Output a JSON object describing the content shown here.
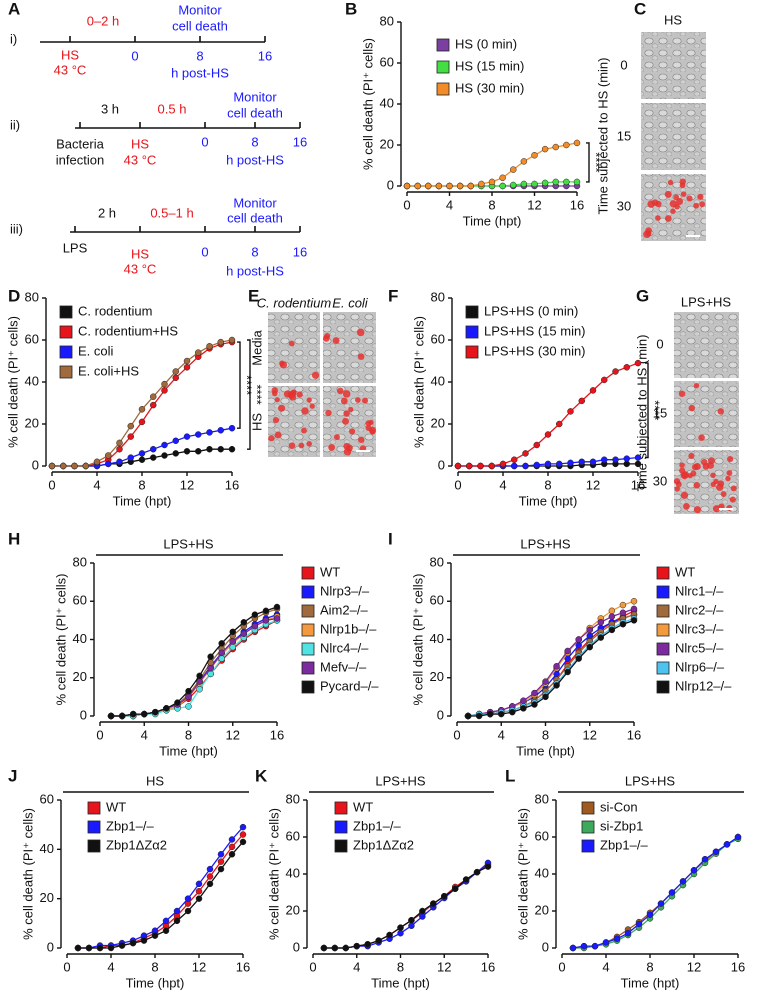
{
  "diagram_a": {
    "label": "A",
    "rows": [
      {
        "label": "i)",
        "interval": "0–2 h",
        "monitor": [
          "Monitor",
          "cell death"
        ],
        "hs": [
          "HS",
          "43 °C"
        ],
        "ticks": [
          0,
          8,
          16
        ],
        "unit": "h post-HS"
      },
      {
        "label": "ii)",
        "pre_interval": "3 h",
        "interval": "0.5 h",
        "monitor": [
          "Monitor",
          "cell death"
        ],
        "start": [
          "Bacteria",
          "infection"
        ],
        "hs": [
          "HS",
          "43 °C"
        ],
        "ticks": [
          0,
          8,
          16
        ],
        "unit": "h post-HS"
      },
      {
        "label": "iii)",
        "pre_interval": "2 h",
        "interval": "0.5–1 h",
        "monitor": [
          "Monitor",
          "cell death"
        ],
        "start": [
          "LPS"
        ],
        "hs": [
          "HS",
          "43 °C"
        ],
        "ticks": [
          0,
          8,
          16
        ],
        "unit": "h post-HS"
      }
    ]
  },
  "panel_c": {
    "label": "C",
    "title": "HS",
    "ylabel": "Time subjected to HS (min)",
    "rows": [
      0,
      15,
      30
    ]
  },
  "panel_e": {
    "label": "E",
    "columns": [
      "C. rodentium",
      "E. coli"
    ],
    "rows": [
      "Media",
      "HS"
    ]
  },
  "panel_g": {
    "label": "G",
    "title": "LPS+HS",
    "ylabel": "Time subjected to HS (min)",
    "rows": [
      0,
      15,
      30
    ]
  },
  "chart_data": [
    {
      "type": "line",
      "label": "B",
      "ylabel": "% cell death (PI⁺ cells)",
      "xlabel": "Time (hpt)",
      "x": [
        0,
        1,
        2,
        3,
        4,
        5,
        6,
        7,
        8,
        9,
        10,
        11,
        12,
        13,
        14,
        15,
        16
      ],
      "xlim": [
        0,
        16
      ],
      "xticks": [
        0,
        4,
        8,
        12,
        16
      ],
      "ylim": [
        0,
        80
      ],
      "yticks": [
        0,
        20,
        40,
        60,
        80
      ],
      "series": [
        {
          "name": "HS (0 min)",
          "color": "#7b3fa0",
          "values": [
            0,
            0,
            0,
            0,
            0,
            0,
            0,
            0,
            0,
            0,
            0,
            0,
            0,
            0,
            0,
            0,
            0
          ]
        },
        {
          "name": "HS (15 min)",
          "color": "#44dd44",
          "values": [
            0,
            0,
            0,
            0,
            0,
            0,
            0,
            0,
            0,
            0,
            0.5,
            1,
            1,
            1.5,
            2,
            2,
            2
          ]
        },
        {
          "name": "HS (30 min)",
          "color": "#f28c28",
          "values": [
            0,
            0,
            0,
            0,
            0,
            0,
            0,
            1,
            2,
            4,
            8,
            12,
            15,
            18,
            19,
            20,
            21
          ]
        }
      ],
      "annotations": [
        "****"
      ]
    },
    {
      "type": "line",
      "label": "D",
      "ylabel": "% cell death (PI⁺ cells)",
      "xlabel": "Time (hpt)",
      "x": [
        0,
        1,
        2,
        3,
        4,
        5,
        6,
        7,
        8,
        9,
        10,
        11,
        12,
        13,
        14,
        15,
        16
      ],
      "xlim": [
        0,
        16
      ],
      "xticks": [
        0,
        4,
        8,
        12,
        16
      ],
      "ylim": [
        0,
        80
      ],
      "yticks": [
        0,
        20,
        40,
        60,
        80
      ],
      "series": [
        {
          "name": "C. rodentium",
          "color": "#111111",
          "values": [
            0,
            0,
            0,
            0,
            0,
            1,
            1,
            2,
            3,
            4,
            5,
            6,
            7,
            7,
            8,
            8,
            8
          ]
        },
        {
          "name": "C. rodentium+HS",
          "color": "#e8141b",
          "values": [
            0,
            0,
            0,
            0,
            1,
            3,
            8,
            14,
            21,
            29,
            36,
            42,
            47,
            52,
            56,
            58,
            59
          ]
        },
        {
          "name": "E. coli",
          "color": "#1a1aff",
          "values": [
            0,
            0,
            0,
            0,
            0,
            1,
            2,
            4,
            6,
            8,
            10,
            12,
            14,
            15,
            16,
            17,
            18
          ]
        },
        {
          "name": "E. coli+HS",
          "color": "#a06a3c",
          "values": [
            0,
            0,
            0,
            0,
            2,
            5,
            11,
            19,
            27,
            33,
            39,
            45,
            50,
            54,
            57,
            59,
            60
          ]
        }
      ],
      "annotations": [
        "****",
        "****"
      ]
    },
    {
      "type": "line",
      "label": "F",
      "ylabel": "% cell death (PI⁺ cells)",
      "xlabel": "Time (hpt)",
      "x": [
        0,
        1,
        2,
        3,
        4,
        5,
        6,
        7,
        8,
        9,
        10,
        11,
        12,
        13,
        14,
        15,
        16
      ],
      "xlim": [
        0,
        16
      ],
      "xticks": [
        0,
        4,
        8,
        12,
        16
      ],
      "ylim": [
        0,
        80
      ],
      "yticks": [
        0,
        20,
        40,
        60,
        80
      ],
      "series": [
        {
          "name": "LPS+HS (0 min)",
          "color": "#111111",
          "values": [
            0,
            0,
            0,
            0,
            0,
            0,
            0,
            0,
            0,
            0,
            0,
            0.5,
            0.5,
            1,
            1,
            1,
            1
          ]
        },
        {
          "name": "LPS+HS (15 min)",
          "color": "#1a1aff",
          "values": [
            0,
            0,
            0,
            0,
            0,
            0,
            0,
            0.5,
            1,
            1,
            1.5,
            2,
            2,
            3,
            3,
            3.5,
            4
          ]
        },
        {
          "name": "LPS+HS (30 min)",
          "color": "#e8141b",
          "values": [
            0,
            0,
            0,
            0,
            1,
            3,
            6,
            10,
            15,
            20,
            26,
            31,
            36,
            41,
            45,
            47,
            49
          ]
        }
      ],
      "annotations": [
        "****"
      ]
    },
    {
      "type": "line",
      "label": "H",
      "title": "LPS+HS",
      "ylabel": "% cell death (PI⁺ cells)",
      "xlabel": "Time (hpt)",
      "x": [
        1,
        2,
        3,
        4,
        5,
        6,
        7,
        8,
        9,
        10,
        11,
        12,
        13,
        14,
        15,
        16
      ],
      "xlim": [
        0,
        16
      ],
      "xticks": [
        0,
        4,
        8,
        12,
        16
      ],
      "ylim": [
        0,
        80
      ],
      "yticks": [
        0,
        20,
        40,
        60,
        80
      ],
      "series": [
        {
          "name": "WT",
          "color": "#e8141b",
          "values": [
            0,
            0,
            0,
            1,
            2,
            3,
            5,
            9,
            15,
            22,
            29,
            35,
            40,
            44,
            47,
            50
          ]
        },
        {
          "name": "Nlrp3–/–",
          "color": "#1a1aff",
          "values": [
            0,
            0,
            1,
            1,
            2,
            4,
            6,
            11,
            18,
            26,
            33,
            39,
            44,
            48,
            51,
            53
          ]
        },
        {
          "name": "Aim2–/–",
          "color": "#a06a3c",
          "values": [
            0,
            0,
            0,
            1,
            2,
            4,
            6,
            11,
            19,
            28,
            35,
            42,
            47,
            51,
            54,
            56
          ]
        },
        {
          "name": "Nlrp1b–/–",
          "color": "#f39a3e",
          "values": [
            0,
            0,
            0,
            1,
            2,
            3,
            5,
            10,
            17,
            25,
            32,
            38,
            43,
            47,
            50,
            52
          ]
        },
        {
          "name": "Nlrc4–/–",
          "color": "#4fe3e3",
          "values": [
            0,
            0,
            0,
            1,
            1,
            3,
            4,
            5,
            14,
            22,
            30,
            36,
            41,
            45,
            48,
            50
          ]
        },
        {
          "name": "Mefv–/–",
          "color": "#7d2a9e",
          "values": [
            0,
            0,
            1,
            1,
            2,
            4,
            6,
            10,
            18,
            25,
            33,
            39,
            43,
            47,
            50,
            51
          ]
        },
        {
          "name": "Pycard–/–",
          "color": "#111111",
          "values": [
            0,
            0,
            1,
            1,
            2,
            4,
            7,
            13,
            21,
            31,
            38,
            44,
            49,
            53,
            55,
            57
          ]
        }
      ]
    },
    {
      "type": "line",
      "label": "I",
      "title": "LPS+HS",
      "ylabel": "% cell death (PI⁺ cells)",
      "xlabel": "Time (hpt)",
      "x": [
        1,
        2,
        3,
        4,
        5,
        6,
        7,
        8,
        9,
        10,
        11,
        12,
        13,
        14,
        15,
        16
      ],
      "xlim": [
        0,
        16
      ],
      "xticks": [
        0,
        4,
        8,
        12,
        16
      ],
      "ylim": [
        0,
        80
      ],
      "yticks": [
        0,
        20,
        40,
        60,
        80
      ],
      "series": [
        {
          "name": "WT",
          "color": "#e8141b",
          "values": [
            0,
            1,
            1,
            2,
            3,
            5,
            8,
            13,
            19,
            27,
            34,
            40,
            45,
            49,
            52,
            55
          ]
        },
        {
          "name": "Nlrc1–/–",
          "color": "#1a1aff",
          "values": [
            0,
            1,
            2,
            3,
            5,
            7,
            10,
            15,
            22,
            30,
            37,
            42,
            46,
            49,
            51,
            53
          ]
        },
        {
          "name": "Nlrc2–/–",
          "color": "#a06a3c",
          "values": [
            0,
            1,
            1,
            2,
            3,
            5,
            8,
            13,
            19,
            26,
            33,
            39,
            44,
            48,
            51,
            53
          ]
        },
        {
          "name": "Nlrc3–/–",
          "color": "#f39a3e",
          "values": [
            0,
            1,
            2,
            3,
            5,
            7,
            11,
            17,
            25,
            33,
            40,
            46,
            51,
            55,
            58,
            60
          ]
        },
        {
          "name": "Nlrc5–/–",
          "color": "#7d2a9e",
          "values": [
            0,
            1,
            2,
            3,
            5,
            8,
            12,
            18,
            26,
            34,
            40,
            45,
            49,
            52,
            54,
            56
          ]
        },
        {
          "name": "Nlrp6–/–",
          "color": "#4fc3f0",
          "values": [
            0,
            1,
            1,
            2,
            3,
            5,
            7,
            11,
            17,
            24,
            31,
            37,
            42,
            46,
            49,
            51
          ]
        },
        {
          "name": "Nlrp12–/–",
          "color": "#111111",
          "values": [
            0,
            0,
            1,
            1,
            2,
            4,
            6,
            10,
            16,
            23,
            30,
            36,
            41,
            45,
            48,
            50
          ]
        }
      ]
    },
    {
      "type": "line",
      "label": "J",
      "title": "HS",
      "ylabel": "% cell death (PI⁺ cells)",
      "xlabel": "Time (hpt)",
      "x": [
        1,
        2,
        3,
        4,
        5,
        6,
        7,
        8,
        9,
        10,
        11,
        12,
        13,
        14,
        15,
        16
      ],
      "xlim": [
        0,
        16
      ],
      "xticks": [
        0,
        4,
        8,
        12,
        16
      ],
      "ylim": [
        0,
        60
      ],
      "yticks": [
        0,
        20,
        40,
        60
      ],
      "series": [
        {
          "name": "WT",
          "color": "#e8141b",
          "values": [
            0,
            0,
            0,
            1,
            1,
            2,
            4,
            6,
            9,
            13,
            18,
            23,
            29,
            35,
            41,
            46
          ]
        },
        {
          "name": "Zbp1–/–",
          "color": "#1a1aff",
          "values": [
            0,
            0,
            1,
            1,
            2,
            3,
            5,
            7,
            11,
            15,
            20,
            26,
            32,
            38,
            44,
            49
          ]
        },
        {
          "name": "Zbp1ΔZα2",
          "color": "#111111",
          "values": [
            0,
            0,
            0,
            0,
            1,
            2,
            3,
            5,
            7,
            11,
            15,
            20,
            26,
            32,
            38,
            43
          ]
        }
      ]
    },
    {
      "type": "line",
      "label": "K",
      "title": "LPS+HS",
      "ylabel": "% cell death (PI⁺ cells)",
      "xlabel": "Time (hpt)",
      "x": [
        1,
        2,
        3,
        4,
        5,
        6,
        7,
        8,
        9,
        10,
        11,
        12,
        13,
        14,
        15,
        16
      ],
      "xlim": [
        0,
        16
      ],
      "xticks": [
        0,
        4,
        8,
        12,
        16
      ],
      "ylim": [
        0,
        80
      ],
      "yticks": [
        0,
        20,
        40,
        60,
        80
      ],
      "series": [
        {
          "name": "WT",
          "color": "#e8141b",
          "values": [
            0,
            0,
            0,
            1,
            2,
            4,
            7,
            11,
            15,
            19,
            24,
            28,
            33,
            37,
            41,
            45
          ]
        },
        {
          "name": "Zbp1–/–",
          "color": "#1a1aff",
          "values": [
            0,
            0,
            0,
            1,
            1,
            3,
            5,
            8,
            12,
            17,
            22,
            27,
            32,
            36,
            41,
            46
          ]
        },
        {
          "name": "Zbp1ΔZα2",
          "color": "#111111",
          "values": [
            0,
            0,
            0,
            1,
            2,
            4,
            7,
            11,
            15,
            20,
            24,
            28,
            32,
            37,
            41,
            44
          ]
        }
      ]
    },
    {
      "type": "line",
      "label": "L",
      "title": "LPS+HS",
      "ylabel": "% cell death (PI⁺ cells)",
      "xlabel": "Time (hpt)",
      "x": [
        1,
        2,
        3,
        4,
        5,
        6,
        7,
        8,
        9,
        10,
        11,
        12,
        13,
        14,
        15,
        16
      ],
      "xlim": [
        0,
        16
      ],
      "xticks": [
        0,
        4,
        8,
        12,
        16
      ],
      "ylim": [
        0,
        80
      ],
      "yticks": [
        0,
        20,
        40,
        60,
        80
      ],
      "series": [
        {
          "name": "si-Con",
          "color": "#a0591e",
          "values": [
            0,
            1,
            1,
            3,
            6,
            10,
            14,
            19,
            24,
            30,
            36,
            42,
            47,
            52,
            56,
            60
          ]
        },
        {
          "name": "si-Zbp1",
          "color": "#3caa5a",
          "values": [
            0,
            0,
            1,
            2,
            4,
            7,
            11,
            16,
            22,
            28,
            34,
            40,
            46,
            51,
            56,
            59
          ]
        },
        {
          "name": "Zbp1–/–",
          "color": "#1a1aff",
          "values": [
            0,
            1,
            1,
            3,
            5,
            8,
            13,
            18,
            24,
            30,
            36,
            42,
            48,
            52,
            56,
            60
          ]
        }
      ]
    }
  ]
}
